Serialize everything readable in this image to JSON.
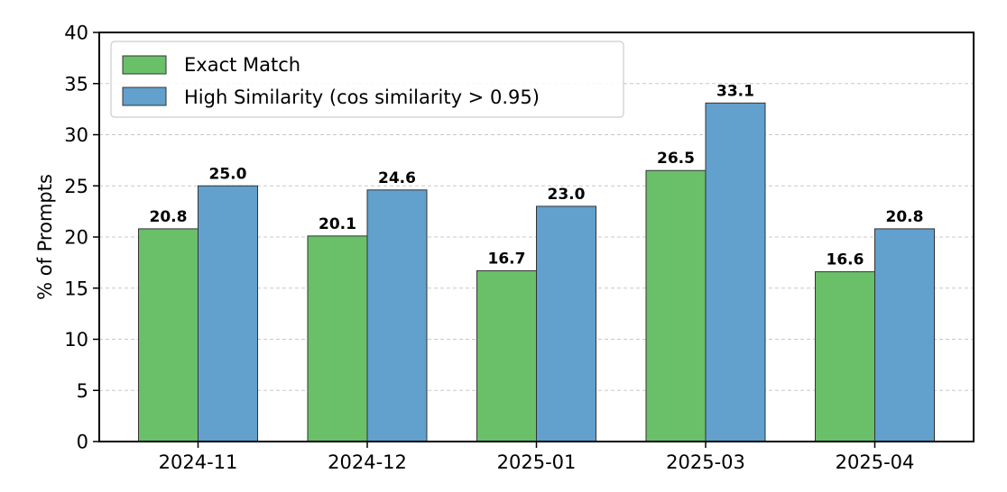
{
  "chart_data": {
    "type": "bar",
    "title": "",
    "xlabel": "",
    "ylabel": "% of Prompts",
    "ylim": [
      0,
      40
    ],
    "yticks": [
      0,
      5,
      10,
      15,
      20,
      25,
      30,
      35,
      40
    ],
    "categories": [
      "2024-11",
      "2024-12",
      "2025-01",
      "2025-03",
      "2025-04"
    ],
    "grid": "horizontal dashed",
    "legend_position": "top-left",
    "series": [
      {
        "name": "Exact Match",
        "color": "#6abf69",
        "values": [
          20.8,
          20.1,
          16.7,
          26.5,
          16.6
        ],
        "labels": [
          "20.8",
          "20.1",
          "16.7",
          "26.5",
          "16.6"
        ]
      },
      {
        "name": "High Similarity (cos similarity > 0.95)",
        "color": "#62a0cd",
        "values": [
          25.0,
          24.6,
          23.0,
          33.1,
          20.8
        ],
        "labels": [
          "25.0",
          "24.6",
          "23.0",
          "33.1",
          "20.8"
        ]
      }
    ]
  }
}
